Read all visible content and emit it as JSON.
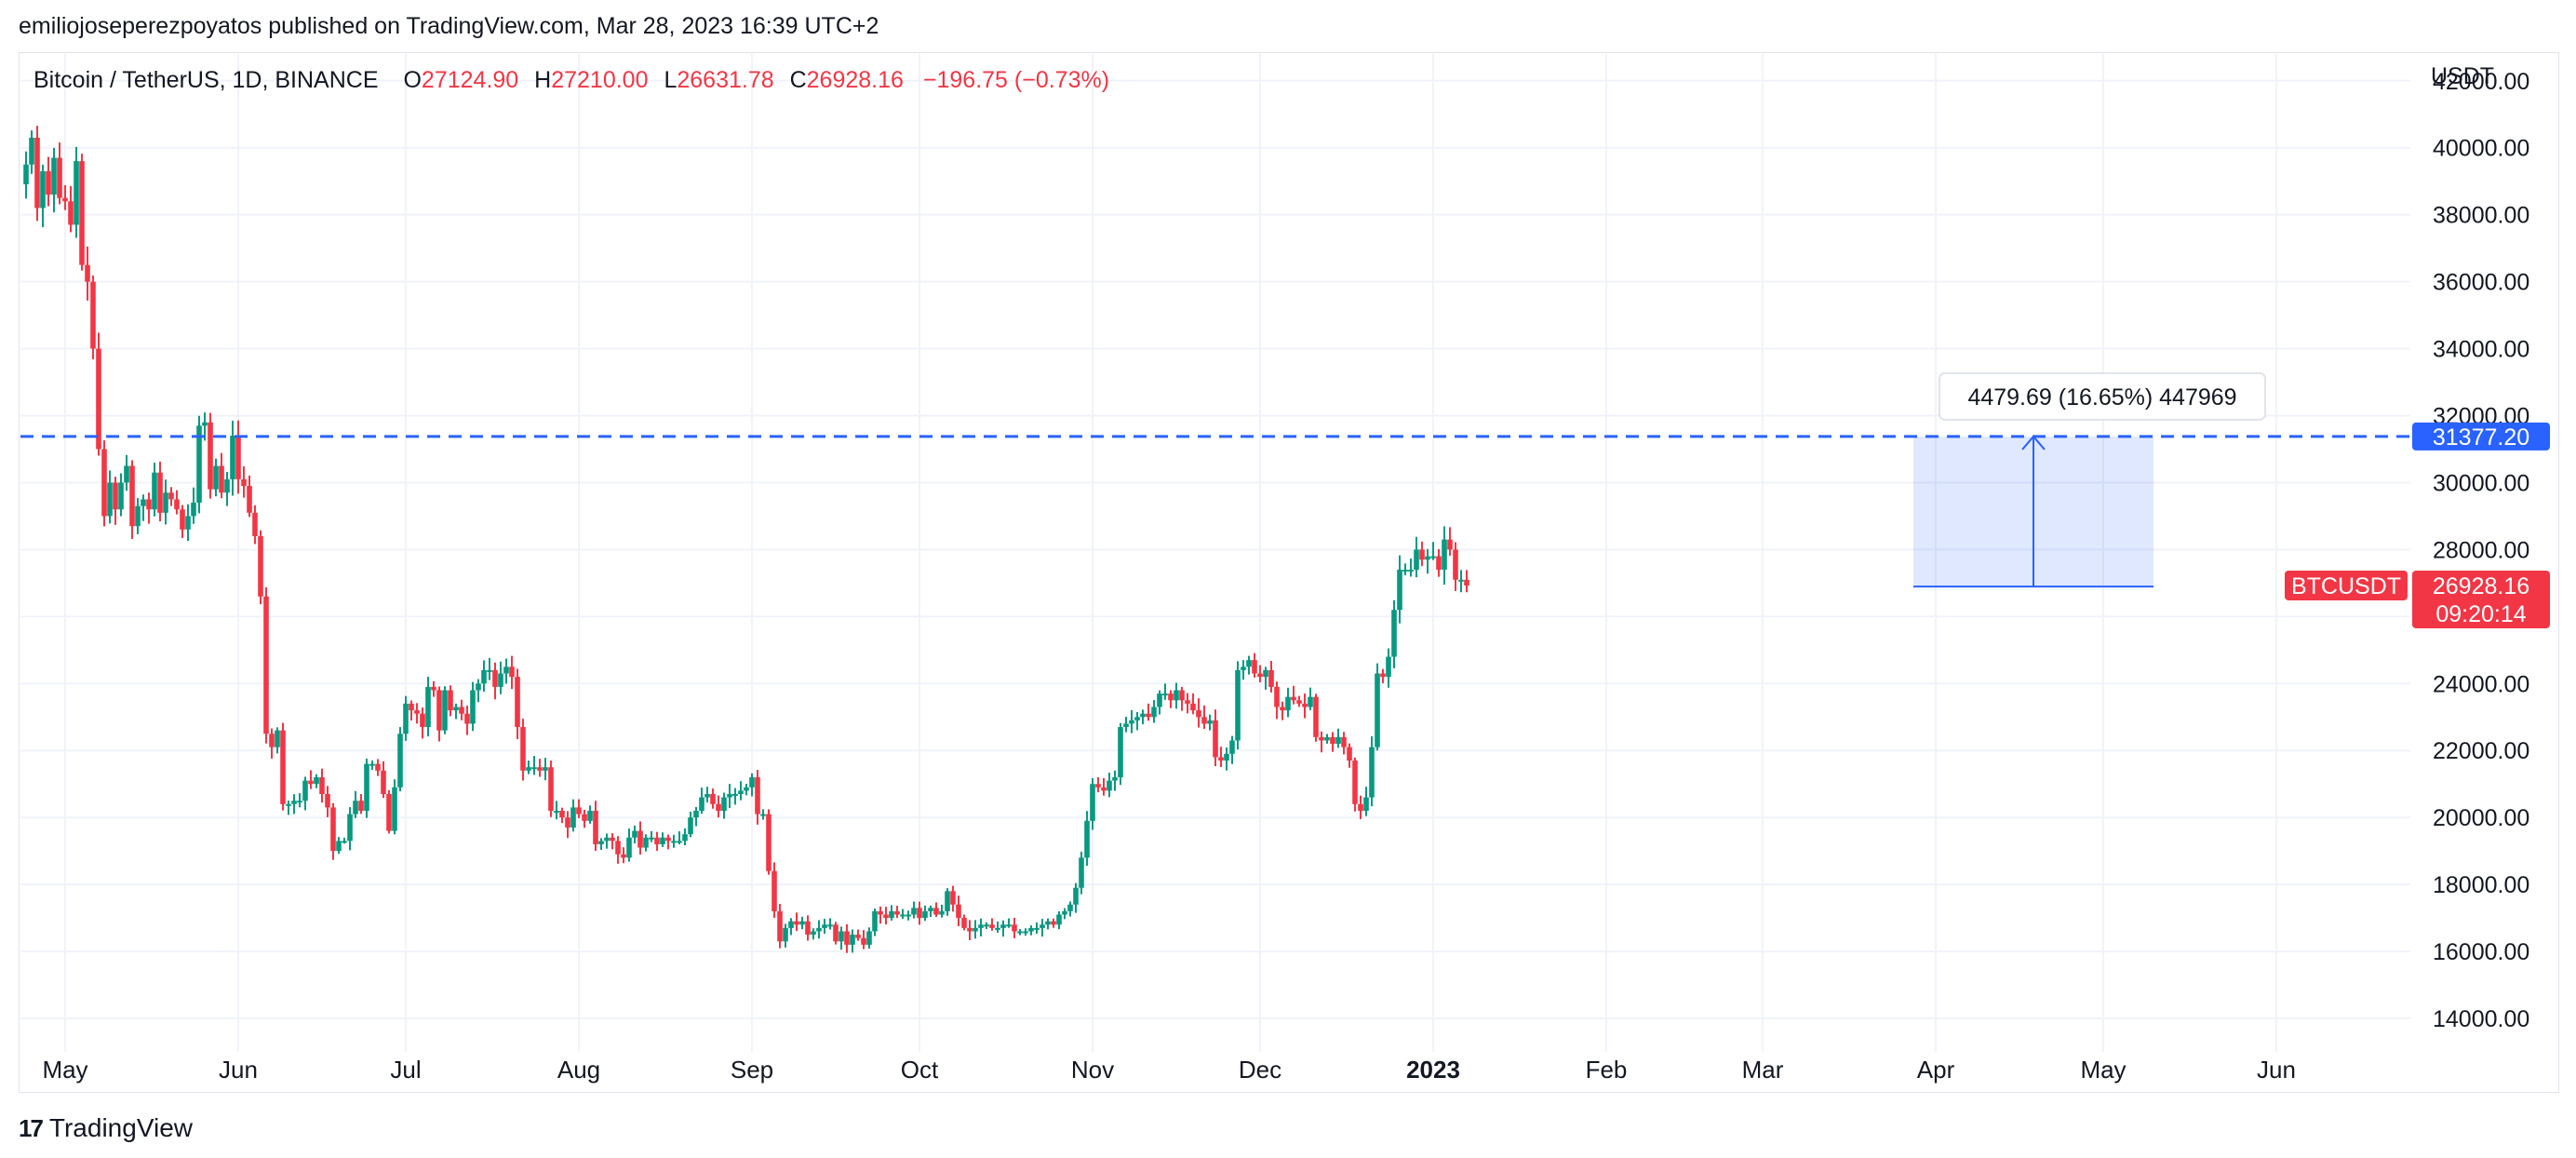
{
  "header": {
    "published": "emiliojoseperezpoyatos published on TradingView.com, Mar 28, 2023 16:39 UTC+2"
  },
  "legend": {
    "symbol": "Bitcoin / TetherUS, 1D, BINANCE",
    "o_label": "O",
    "o_value": "27124.90",
    "h_label": "H",
    "h_value": "27210.00",
    "l_label": "L",
    "l_value": "26631.78",
    "c_label": "C",
    "c_value": "26928.16",
    "change": "−196.75 (−0.73%)"
  },
  "footer": {
    "brand": "TradingView"
  },
  "colors": {
    "up": "#089981",
    "down": "#f23645",
    "accent": "#2962ff",
    "grid": "#f0f3fa",
    "text": "#131722"
  },
  "chart_data": {
    "type": "candlestick",
    "currency_label": "USDT",
    "ylim": [
      13000,
      42800
    ],
    "y_ticks": [
      14000,
      16000,
      18000,
      20000,
      22000,
      24000,
      26000,
      28000,
      30000,
      32000,
      34000,
      36000,
      38000,
      40000,
      42000
    ],
    "y_tick_labels": [
      "14000.00",
      "16000.00",
      "18000.00",
      "20000.00",
      "22000.00",
      "24000.00",
      "",
      "28000.00",
      "30000.00",
      "32000.00",
      "34000.00",
      "36000.00",
      "38000.00",
      "40000.00",
      "42000.00"
    ],
    "x_range": [
      "2022-04-23",
      "2023-06-25"
    ],
    "x_ticks": [
      {
        "date": "2022-05-01",
        "label": "May",
        "bold": false
      },
      {
        "date": "2022-06-01",
        "label": "Jun",
        "bold": false
      },
      {
        "date": "2022-07-01",
        "label": "Jul",
        "bold": false
      },
      {
        "date": "2022-08-01",
        "label": "Aug",
        "bold": false
      },
      {
        "date": "2022-09-01",
        "label": "Sep",
        "bold": false
      },
      {
        "date": "2022-10-01",
        "label": "Oct",
        "bold": false
      },
      {
        "date": "2022-11-01",
        "label": "Nov",
        "bold": false
      },
      {
        "date": "2022-12-01",
        "label": "Dec",
        "bold": false
      },
      {
        "date": "2023-01-01",
        "label": "2023",
        "bold": true
      },
      {
        "date": "2023-02-01",
        "label": "Feb",
        "bold": false
      },
      {
        "date": "2023-03-01",
        "label": "Mar",
        "bold": false
      },
      {
        "date": "2023-04-01",
        "label": "Apr",
        "bold": false
      },
      {
        "date": "2023-05-01",
        "label": "May",
        "bold": false
      },
      {
        "date": "2023-06-01",
        "label": "Jun",
        "bold": false
      }
    ],
    "series_start": "2022-04-24",
    "closes": [
      39500,
      40300,
      38200,
      39300,
      38600,
      39700,
      38500,
      38400,
      37700,
      39600,
      36500,
      36000,
      34000,
      31000,
      29000,
      30000,
      29200,
      30000,
      30500,
      28700,
      29300,
      29500,
      29200,
      30300,
      29100,
      29700,
      29500,
      29200,
      28600,
      29000,
      29400,
      31700,
      31800,
      29800,
      30500,
      29700,
      30100,
      31400,
      30100,
      29900,
      29100,
      28400,
      26600,
      22500,
      22100,
      22600,
      20400,
      20400,
      20500,
      20500,
      21100,
      21000,
      21200,
      20700,
      20300,
      19000,
      19300,
      19300,
      20100,
      20500,
      20200,
      21600,
      21600,
      21400,
      20700,
      19600,
      20900,
      22500,
      23400,
      23200,
      23100,
      22700,
      23900,
      23800,
      22600,
      23800,
      23200,
      23300,
      23100,
      22800,
      23800,
      24000,
      24400,
      24400,
      23900,
      24300,
      24500,
      24200,
      22700,
      21400,
      21500,
      21500,
      21400,
      21500,
      20200,
      20200,
      20000,
      19700,
      20300,
      20100,
      19900,
      20200,
      19200,
      19300,
      19400,
      19300,
      18900,
      18800,
      19400,
      19600,
      19100,
      19400,
      19400,
      19200,
      19400,
      19300,
      19300,
      19300,
      19500,
      20000,
      20200,
      20600,
      20700,
      20400,
      20200,
      20600,
      20700,
      20700,
      20800,
      20900,
      21200,
      20100,
      20100,
      18400,
      17200,
      16300,
      16700,
      16900,
      16800,
      16900,
      16500,
      16600,
      16700,
      16800,
      16800,
      16300,
      16600,
      16200,
      16500,
      16400,
      16200,
      16600,
      17200,
      17100,
      17000,
      17200,
      17100,
      17100,
      17100,
      17300,
      17000,
      17200,
      17300,
      17100,
      17200,
      17800,
      17400,
      17000,
      16700,
      16600,
      16700,
      16800,
      16800,
      16700,
      16700,
      16800,
      16800,
      16600,
      16600,
      16600,
      16700,
      16700,
      16800,
      16900,
      16800,
      17100,
      17200,
      17400,
      17900,
      18800,
      19900,
      21000,
      20900,
      20800,
      21100,
      21200,
      22700,
      22800,
      22900,
      23000,
      23100,
      23000,
      23300,
      23700,
      23700,
      23500,
      23800,
      23500,
      23400,
      23200,
      23000,
      22800,
      22900,
      21800,
      21700,
      21900,
      22300,
      24400,
      24500,
      24700,
      24300,
      24200,
      24400,
      23900,
      23300,
      23200,
      23600,
      23500,
      23400,
      23300,
      23600,
      22400,
      22300,
      22400,
      22200,
      22400,
      22100,
      21700,
      20400,
      20200,
      20600,
      22100,
      24300,
      24200,
      24800,
      26200,
      27400,
      27400,
      27400,
      28000,
      27700,
      27800,
      27800,
      27400,
      28300,
      28000,
      27100,
      27100,
      26928
    ],
    "price_line": {
      "value": 31377.2,
      "label": "31377.20",
      "style": "dashed"
    },
    "last_price": {
      "symbol": "BTCUSDT",
      "value": 26928.16,
      "label": "26928.16",
      "countdown": "09:20:14"
    },
    "measure_tool": {
      "from_date": "2023-03-28",
      "to_date": "2023-05-10",
      "from_price": 26897.5,
      "to_price": 31377.2,
      "label": "4479.69 (16.65%) 447969"
    }
  }
}
